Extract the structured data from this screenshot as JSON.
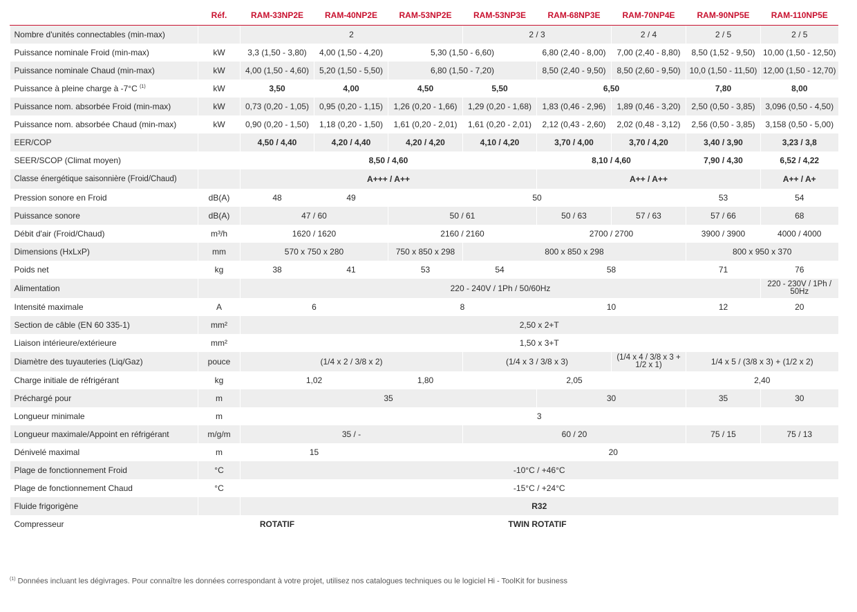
{
  "header": {
    "ref_label": "Réf.",
    "models": [
      "RAM-33NP2E",
      "RAM-40NP2E",
      "RAM-53NP2E",
      "RAM-53NP3E",
      "RAM-68NP3E",
      "RAM-70NP4E",
      "RAM-90NP5E",
      "RAM-110NP5E"
    ]
  },
  "colors": {
    "accent": "#c8102e",
    "stripe": "#eeeeee"
  },
  "rows": [
    {
      "label": "Nombre d'unités connectables (min-max)",
      "unit": "",
      "bold": false,
      "cells": [
        {
          "v": "2",
          "span": 3
        },
        {
          "v": "2 / 3",
          "span": 2
        },
        {
          "v": "2 / 4",
          "span": 1
        },
        {
          "v": "2 / 5",
          "span": 1
        },
        {
          "v": "2 / 5",
          "span": 1
        }
      ]
    },
    {
      "label": "Puissance nominale Froid (min-max)",
      "unit": "kW",
      "bold": false,
      "cells": [
        {
          "v": "3,3 (1,50 - 3,80)",
          "span": 1
        },
        {
          "v": "4,00 (1,50 - 4,20)",
          "span": 1
        },
        {
          "v": "5,30 (1,50 - 6,60)",
          "span": 2
        },
        {
          "v": "6,80 (2,40 - 8,00)",
          "span": 1
        },
        {
          "v": "7,00 (2,40 - 8,80)",
          "span": 1
        },
        {
          "v": "8,50 (1,52 - 9,50)",
          "span": 1
        },
        {
          "v": "10,00 (1,50 - 12,50)",
          "span": 1
        }
      ]
    },
    {
      "label": "Puissance nominale Chaud (min-max)",
      "unit": "kW",
      "bold": false,
      "cells": [
        {
          "v": "4,00 (1,50 - 4,60)",
          "span": 1
        },
        {
          "v": "5,20 (1,50 - 5,50)",
          "span": 1
        },
        {
          "v": "6,80 (1,50 - 7,20)",
          "span": 2
        },
        {
          "v": "8,50 (2,40 - 9,50)",
          "span": 1
        },
        {
          "v": "8,50 (2,60 - 9,50)",
          "span": 1
        },
        {
          "v": "10,0 (1,50 - 11,50)",
          "span": 1
        },
        {
          "v": "12,00 (1,50 - 12,70)",
          "span": 1
        }
      ]
    },
    {
      "label": "Puissance à pleine charge à -7°C",
      "label_sup": "(1)",
      "unit": "kW",
      "bold": true,
      "cells": [
        {
          "v": "3,50",
          "span": 1
        },
        {
          "v": "4,00",
          "span": 1
        },
        {
          "v": "4,50",
          "span": 1
        },
        {
          "v": "5,50",
          "span": 1
        },
        {
          "v": "6,50",
          "span": 2
        },
        {
          "v": "7,80",
          "span": 1
        },
        {
          "v": "8,00",
          "span": 1
        }
      ]
    },
    {
      "label": "Puissance nom. absorbée Froid (min-max)",
      "unit": "kW",
      "bold": false,
      "cells": [
        {
          "v": "0,73 (0,20 - 1,05)",
          "span": 1
        },
        {
          "v": "0,95 (0,20 - 1,15)",
          "span": 1
        },
        {
          "v": "1,26 (0,20 - 1,66)",
          "span": 1
        },
        {
          "v": "1,29 (0,20 - 1,68)",
          "span": 1
        },
        {
          "v": "1,83 (0,46 - 2,96)",
          "span": 1
        },
        {
          "v": "1,89 (0,46 - 3,20)",
          "span": 1
        },
        {
          "v": "2,50 (0,50 - 3,85)",
          "span": 1
        },
        {
          "v": "3,096 (0,50 - 4,50)",
          "span": 1
        }
      ]
    },
    {
      "label": "Puissance nom. absorbée Chaud (min-max)",
      "unit": "kW",
      "bold": false,
      "cells": [
        {
          "v": "0,90 (0,20 - 1,50)",
          "span": 1
        },
        {
          "v": "1,18 (0,20 - 1,50)",
          "span": 1
        },
        {
          "v": "1,61 (0,20 - 2,01)",
          "span": 1
        },
        {
          "v": "1,61 (0,20 - 2,01)",
          "span": 1
        },
        {
          "v": "2,12 (0,43 - 2,60)",
          "span": 1
        },
        {
          "v": "2,02 (0,48 - 3,12)",
          "span": 1
        },
        {
          "v": "2,56 (0,50 - 3,85)",
          "span": 1
        },
        {
          "v": "3,158 (0,50 - 5,00)",
          "span": 1
        }
      ]
    },
    {
      "label": "EER/COP",
      "unit": "",
      "bold": true,
      "cells": [
        {
          "v": "4,50 / 4,40",
          "span": 1
        },
        {
          "v": "4,20 / 4,40",
          "span": 1
        },
        {
          "v": "4,20 / 4,20",
          "span": 1
        },
        {
          "v": "4,10 / 4,20",
          "span": 1
        },
        {
          "v": "3,70 / 4,00",
          "span": 1
        },
        {
          "v": "3,70 / 4,20",
          "span": 1
        },
        {
          "v": "3,40 / 3,90",
          "span": 1
        },
        {
          "v": "3,23 / 3,8",
          "span": 1
        }
      ]
    },
    {
      "label": "SEER/SCOP (Climat moyen)",
      "unit": "",
      "bold": true,
      "cells": [
        {
          "v": "8,50 / 4,60",
          "span": 4
        },
        {
          "v": "8,10 / 4,60",
          "span": 2
        },
        {
          "v": "7,90 / 4,30",
          "span": 1
        },
        {
          "v": "6,52 / 4,22",
          "span": 1
        }
      ]
    },
    {
      "label": "Classe énergétique saisonnière (Froid/Chaud)",
      "unit": "",
      "bold": true,
      "tall": true,
      "cells": [
        {
          "v": "A+++ / A++",
          "span": 4
        },
        {
          "v": "A++ / A++",
          "span": 3
        },
        {
          "v": "A++ / A+",
          "span": 1
        }
      ]
    },
    {
      "label": "Pression sonore en Froid",
      "unit": "dB(A)",
      "bold": false,
      "cells": [
        {
          "v": "48",
          "span": 1
        },
        {
          "v": "49",
          "span": 1
        },
        {
          "v": "50",
          "span": 4
        },
        {
          "v": "53",
          "span": 1
        },
        {
          "v": "54",
          "span": 1
        }
      ]
    },
    {
      "label": "Puissance sonore",
      "unit": "dB(A)",
      "bold": false,
      "cells": [
        {
          "v": "47 / 60",
          "span": 2
        },
        {
          "v": "50 / 61",
          "span": 2
        },
        {
          "v": "50 / 63",
          "span": 1
        },
        {
          "v": "57 / 63",
          "span": 1
        },
        {
          "v": "57 / 66",
          "span": 1
        },
        {
          "v": "68",
          "span": 1
        }
      ]
    },
    {
      "label": "Débit d'air (Froid/Chaud)",
      "unit": "m³/h",
      "bold": false,
      "cells": [
        {
          "v": "1620 / 1620",
          "span": 2
        },
        {
          "v": "2160 / 2160",
          "span": 2
        },
        {
          "v": "2700 / 2700",
          "span": 2
        },
        {
          "v": "3900 / 3900",
          "span": 1
        },
        {
          "v": "4000 / 4000",
          "span": 1
        }
      ]
    },
    {
      "label": "Dimensions (HxLxP)",
      "unit": "mm",
      "bold": false,
      "cells": [
        {
          "v": "570 x 750 x 280",
          "span": 2
        },
        {
          "v": "750 x 850 x 298",
          "span": 1
        },
        {
          "v": "800 x 850 x 298",
          "span": 3
        },
        {
          "v": "800 x 950 x 370",
          "span": 2
        }
      ]
    },
    {
      "label": "Poids net",
      "unit": "kg",
      "bold": false,
      "cells": [
        {
          "v": "38",
          "span": 1
        },
        {
          "v": "41",
          "span": 1
        },
        {
          "v": "53",
          "span": 1
        },
        {
          "v": "54",
          "span": 1
        },
        {
          "v": "58",
          "span": 2
        },
        {
          "v": "71",
          "span": 1
        },
        {
          "v": "76",
          "span": 1
        }
      ]
    },
    {
      "label": "Alimentation",
      "unit": "",
      "bold": false,
      "tall": true,
      "cells": [
        {
          "v": "220 - 240V / 1Ph / 50/60Hz",
          "span": 7
        },
        {
          "v": "220 - 230V / 1Ph / 50Hz",
          "span": 1,
          "wrap": true
        }
      ]
    },
    {
      "label": "Intensité maximale",
      "unit": "A",
      "bold": false,
      "cells": [
        {
          "v": "6",
          "span": 2
        },
        {
          "v": "8",
          "span": 2
        },
        {
          "v": "10",
          "span": 2
        },
        {
          "v": "12",
          "span": 1
        },
        {
          "v": "20",
          "span": 1
        }
      ]
    },
    {
      "label": "Section de câble (EN 60 335-1)",
      "unit": "mm²",
      "bold": false,
      "cells": [
        {
          "v": "2,50 x 2+T",
          "span": 8
        }
      ]
    },
    {
      "label": "Liaison intérieure/extérieure",
      "unit": "mm²",
      "bold": false,
      "cells": [
        {
          "v": "1,50 x 3+T",
          "span": 8
        }
      ]
    },
    {
      "label": "Diamètre des tuyauteries (Liq/Gaz)",
      "unit": "pouce",
      "bold": false,
      "tall": true,
      "cells": [
        {
          "v": "(1/4 x 2 / 3/8 x 2)",
          "span": 3
        },
        {
          "v": "(1/4 x 3 / 3/8 x 3)",
          "span": 2
        },
        {
          "v": "(1/4 x 4 / 3/8 x 3 + 1/2 x 1)",
          "span": 1,
          "wrap": true
        },
        {
          "v": "1/4 x 5 / (3/8 x 3) + (1/2 x 2)",
          "span": 2
        }
      ]
    },
    {
      "label": "Charge initiale de réfrigérant",
      "unit": "kg",
      "bold": false,
      "cells": [
        {
          "v": "1,02",
          "span": 2
        },
        {
          "v": "1,80",
          "span": 1
        },
        {
          "v": "2,05",
          "span": 3
        },
        {
          "v": "2,40",
          "span": 2
        }
      ]
    },
    {
      "label": "Préchargé pour",
      "unit": "m",
      "bold": false,
      "cells": [
        {
          "v": "35",
          "span": 4
        },
        {
          "v": "30",
          "span": 2
        },
        {
          "v": "35",
          "span": 1
        },
        {
          "v": "30",
          "span": 1
        }
      ]
    },
    {
      "label": "Longueur minimale",
      "unit": "m",
      "bold": false,
      "cells": [
        {
          "v": "3",
          "span": 8
        }
      ]
    },
    {
      "label": "Longueur maximale/Appoint en réfrigérant",
      "unit": "m/g/m",
      "bold": false,
      "cells": [
        {
          "v": "35 / -",
          "span": 3
        },
        {
          "v": "60 / 20",
          "span": 3
        },
        {
          "v": "75 / 15",
          "span": 1
        },
        {
          "v": "75 / 13",
          "span": 1
        }
      ]
    },
    {
      "label": "Dénivelé maximal",
      "unit": "m",
      "bold": false,
      "cells": [
        {
          "v": "15",
          "span": 2
        },
        {
          "v": "20",
          "span": 6
        }
      ]
    },
    {
      "label": " Plage de fonctionnement Froid",
      "unit": "°C",
      "bold": false,
      "cells": [
        {
          "v": "-10°C / +46°C",
          "span": 8
        }
      ]
    },
    {
      "label": "Plage de fonctionnement Chaud",
      "unit": "°C",
      "bold": false,
      "cells": [
        {
          "v": "-15°C / +24°C",
          "span": 8
        }
      ]
    },
    {
      "label": "Fluide frigorigène",
      "unit": "",
      "bold": true,
      "cells": [
        {
          "v": "R32",
          "span": 8
        }
      ]
    },
    {
      "label": "Compresseur",
      "unit": "",
      "bold": true,
      "cells": [
        {
          "v": "ROTATIF",
          "span": 1
        },
        {
          "v": "TWIN ROTATIF",
          "span": 6
        },
        {
          "v": "",
          "span": 1
        }
      ]
    }
  ],
  "footnote": {
    "marker": "(1)",
    "text": " Données incluant les dégivrages. Pour connaître les données correspondant à votre projet, utilisez nos catalogues techniques ou le logiciel Hi - ToolKit for business"
  }
}
